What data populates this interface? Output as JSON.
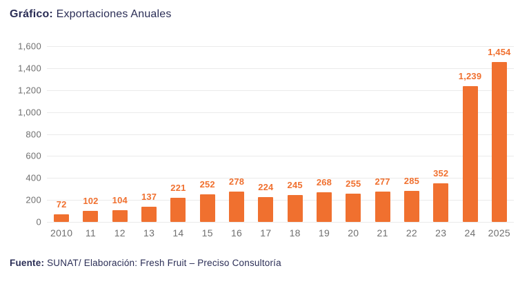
{
  "title": {
    "prefix": "Gráfico:",
    "text": " Exportaciones Anuales"
  },
  "footer": {
    "prefix": "Fuente:",
    "text": " SUNAT/ Elaboración: Fresh Fruit – Preciso Consultoría"
  },
  "colors": {
    "bar": "#F0702F",
    "value_label": "#F0702F",
    "title_text": "#2A2D55",
    "axis_text": "#6F6F6F",
    "gridline": "#EAEAEA",
    "background": "#FFFFFF"
  },
  "chart_data": {
    "type": "bar",
    "title": "Exportaciones Anuales",
    "categories": [
      "2010",
      "11",
      "12",
      "13",
      "14",
      "15",
      "16",
      "17",
      "18",
      "19",
      "20",
      "21",
      "22",
      "23",
      "24",
      "2025"
    ],
    "values": [
      72,
      102,
      104,
      137,
      221,
      252,
      278,
      224,
      245,
      268,
      255,
      277,
      285,
      352,
      1239,
      1454
    ],
    "value_labels": [
      "72",
      "102",
      "104",
      "137",
      "221",
      "252",
      "278",
      "224",
      "245",
      "268",
      "255",
      "277",
      "285",
      "352",
      "1,239",
      "1,454"
    ],
    "y_tick_labels": [
      "0",
      "200",
      "400",
      "600",
      "800",
      "1,000",
      "1,200",
      "1,400",
      "1,600"
    ],
    "xlabel": "",
    "ylabel": "",
    "ylim": [
      0,
      1600
    ],
    "ytick_step": 200,
    "grid": true,
    "legend": "none"
  }
}
